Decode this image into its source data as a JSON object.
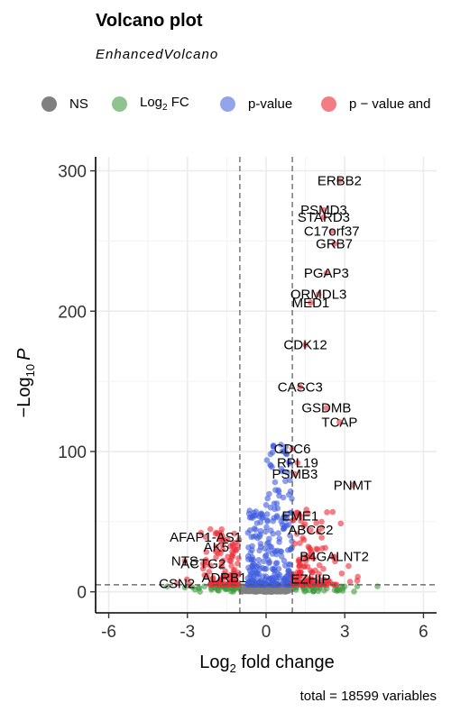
{
  "chart_data": {
    "type": "scatter",
    "title": "Volcano plot",
    "subtitle": "EnhancedVolcano",
    "xlabel": "Log",
    "xlabel_sub": "2",
    "xlabel_rest": " fold change",
    "ylabel_prefix": "−Log",
    "ylabel_sub": "10",
    "ylabel_italic": "P",
    "caption": "total = 18599 variables",
    "xlim": [
      -6.5,
      6.5
    ],
    "ylim": [
      -15,
      310
    ],
    "xticks": [
      -6,
      -3,
      0,
      3,
      6
    ],
    "yticks": [
      0,
      100,
      200,
      300
    ],
    "fc_cutoff": 1,
    "p_cutoff_y": 5,
    "grid": true,
    "legend_position": "top",
    "legend": [
      {
        "label": "NS",
        "color": "#808080"
      },
      {
        "label": "Log",
        "sub": "2",
        "rest": " FC",
        "color": "#5fa65f"
      },
      {
        "label": "p-value",
        "color": "#6a7fe0"
      },
      {
        "label": "p − value and",
        "color": "#ef4b55"
      }
    ],
    "colors": {
      "ns": "#808080",
      "fc": "#3e9b3e",
      "p": "#3f5ee0",
      "both": "#ee2a36"
    },
    "labeled_points": [
      {
        "gene": "ERBB2",
        "x": 2.8,
        "y": 293
      },
      {
        "gene": "PSMD3",
        "x": 2.2,
        "y": 272
      },
      {
        "gene": "STARD3",
        "x": 2.2,
        "y": 267
      },
      {
        "gene": "C17orf37",
        "x": 2.5,
        "y": 257
      },
      {
        "gene": "GRB7",
        "x": 2.6,
        "y": 248
      },
      {
        "gene": "PGAP3",
        "x": 2.3,
        "y": 227
      },
      {
        "gene": "ORMDL3",
        "x": 2.0,
        "y": 212
      },
      {
        "gene": "MED1",
        "x": 1.7,
        "y": 206
      },
      {
        "gene": "CDK12",
        "x": 1.5,
        "y": 176
      },
      {
        "gene": "CASC3",
        "x": 1.3,
        "y": 146
      },
      {
        "gene": "GSDMB",
        "x": 2.3,
        "y": 131
      },
      {
        "gene": "TCAP",
        "x": 2.8,
        "y": 121
      },
      {
        "gene": "CDC6",
        "x": 1.0,
        "y": 102
      },
      {
        "gene": "RPL19",
        "x": 1.2,
        "y": 92
      },
      {
        "gene": "PSMB3",
        "x": 1.1,
        "y": 84
      },
      {
        "gene": "PNMT",
        "x": 3.3,
        "y": 76
      },
      {
        "gene": "EME1",
        "x": 1.3,
        "y": 54
      },
      {
        "gene": "ABCC2",
        "x": 1.7,
        "y": 44
      },
      {
        "gene": "AFAP1-AS1",
        "x": -2.3,
        "y": 39
      },
      {
        "gene": "AK5",
        "x": -1.9,
        "y": 32
      },
      {
        "gene": "B4GALNT2",
        "x": 2.6,
        "y": 25
      },
      {
        "gene": "NTS",
        "x": -3.1,
        "y": 22
      },
      {
        "gene": "ACTG2",
        "x": -2.4,
        "y": 20
      },
      {
        "gene": "ADRB1",
        "x": -1.6,
        "y": 10
      },
      {
        "gene": "EZHIP",
        "x": 1.7,
        "y": 9
      },
      {
        "gene": "CSN2",
        "x": -3.4,
        "y": 6
      }
    ]
  }
}
